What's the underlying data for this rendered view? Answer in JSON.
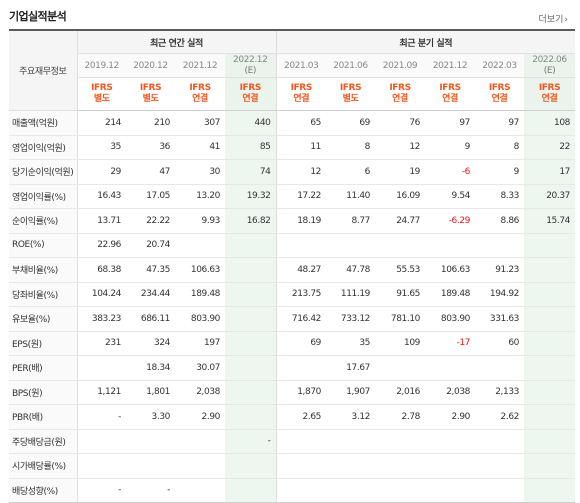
{
  "page": {
    "title": "기업실적분석",
    "more_label": "더보기",
    "more_icon": "chevron-right-icon"
  },
  "header": {
    "side_label": "주요재무정보",
    "groups": [
      "최근 연간 실적",
      "최근 분기 실적"
    ],
    "periods": [
      "2019.12",
      "2020.12",
      "2021.12",
      "2022.12",
      "2021.03",
      "2021.06",
      "2021.09",
      "2021.12",
      "2022.03",
      "2022.06"
    ],
    "estimate_label": "(E)",
    "basis": [
      "IFRS 별도",
      "IFRS 별도",
      "IFRS 연결",
      "IFRS 연결",
      "IFRS 연결",
      "IFRS 별도",
      "IFRS 연결",
      "IFRS 연결",
      "IFRS 연결",
      "IFRS 연결"
    ]
  },
  "rows": [
    {
      "label": "매출액(억원)",
      "values": [
        "214",
        "210",
        "307",
        "440",
        "65",
        "69",
        "76",
        "97",
        "97",
        "108"
      ]
    },
    {
      "label": "영업이익(억원)",
      "values": [
        "35",
        "36",
        "41",
        "85",
        "11",
        "8",
        "12",
        "9",
        "8",
        "22"
      ]
    },
    {
      "label": "당기순이익(억원)",
      "values": [
        "29",
        "47",
        "30",
        "74",
        "12",
        "6",
        "19",
        "-6",
        "9",
        "17"
      ]
    },
    {
      "label": "영업이익률(%)",
      "values": [
        "16.43",
        "17.05",
        "13.20",
        "19.32",
        "17.22",
        "11.40",
        "16.09",
        "9.54",
        "8.33",
        "20.37"
      ]
    },
    {
      "label": "순이익률(%)",
      "values": [
        "13.71",
        "22.22",
        "9.93",
        "16.82",
        "18.19",
        "8.77",
        "24.77",
        "-6.29",
        "8.86",
        "15.74"
      ]
    },
    {
      "label": "ROE(%)",
      "values": [
        "22.96",
        "20.74",
        "",
        "",
        "",
        "",
        "",
        "",
        "",
        ""
      ]
    },
    {
      "label": "부채비율(%)",
      "values": [
        "68.38",
        "47.35",
        "106.63",
        "",
        "48.27",
        "47.78",
        "55.53",
        "106.63",
        "91.23",
        ""
      ]
    },
    {
      "label": "당좌비율(%)",
      "values": [
        "104.24",
        "234.44",
        "189.48",
        "",
        "213.75",
        "111.19",
        "91.65",
        "189.48",
        "194.92",
        ""
      ]
    },
    {
      "label": "유보율(%)",
      "values": [
        "383.23",
        "686.11",
        "803.90",
        "",
        "716.42",
        "733.12",
        "781.10",
        "803.90",
        "331.63",
        ""
      ]
    },
    {
      "label": "EPS(원)",
      "values": [
        "231",
        "324",
        "197",
        "",
        "69",
        "35",
        "109",
        "-17",
        "60",
        ""
      ]
    },
    {
      "label": "PER(배)",
      "values": [
        "",
        "18.34",
        "30.07",
        "",
        "",
        "17.67",
        "",
        "",
        "",
        ""
      ]
    },
    {
      "label": "BPS(원)",
      "values": [
        "1,121",
        "1,801",
        "2,038",
        "",
        "1,870",
        "1,907",
        "2,016",
        "2,038",
        "2,133",
        ""
      ]
    },
    {
      "label": "PBR(배)",
      "values": [
        "-",
        "3.30",
        "2.90",
        "",
        "2.65",
        "3.12",
        "2.78",
        "2.90",
        "2.62",
        ""
      ]
    },
    {
      "label": "주당배당금(원)",
      "values": [
        "",
        "",
        "",
        "-",
        "",
        "",
        "",
        "",
        "",
        ""
      ]
    },
    {
      "label": "시가배당률(%)",
      "values": [
        "",
        "",
        "",
        "",
        "",
        "",
        "",
        "",
        "",
        ""
      ]
    },
    {
      "label": "배당성향(%)",
      "values": [
        "-",
        "-",
        "",
        "",
        "",
        "",
        "",
        "",
        "",
        ""
      ]
    }
  ],
  "colors": {
    "ifrs_label": "#f0571f",
    "negative": "#e8141b",
    "estimate_column_bg": "#eef6f0",
    "header_bg": "#f5f5f5"
  }
}
